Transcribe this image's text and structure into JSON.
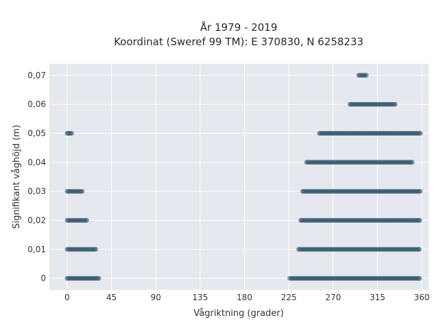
{
  "chart_data": {
    "type": "scatter",
    "title": "År 1979 - 2019",
    "subtitle": "Koordinat (Sweref 99 TM): E 370830, N 6258233",
    "xlabel": "Vågriktning (grader)",
    "ylabel": "Signifikant våghöjd (m)",
    "xlim": [
      -18,
      367
    ],
    "ylim": [
      -0.004,
      0.074
    ],
    "x_ticks": [
      0,
      45,
      90,
      135,
      180,
      225,
      270,
      315,
      360
    ],
    "x_tick_labels": [
      "0",
      "45",
      "90",
      "135",
      "180",
      "225",
      "270",
      "315",
      "360"
    ],
    "y_ticks": [
      0,
      0.01,
      0.02,
      0.03,
      0.04,
      0.05,
      0.06,
      0.07
    ],
    "y_tick_labels": [
      "0",
      "0,01",
      "0,02",
      "0,03",
      "0,04",
      "0,05",
      "0,06",
      "0,07"
    ],
    "grid": true,
    "marker_color": "#2e5068",
    "background_color": "#e5e8ef",
    "series": [
      {
        "ranges": [
          {
            "y": 0,
            "x_from": 0,
            "x_to": 33
          },
          {
            "y": 0,
            "x_from": 226,
            "x_to": 359
          },
          {
            "y": 0.01,
            "x_from": 0,
            "x_to": 30
          },
          {
            "y": 0.01,
            "x_from": 235,
            "x_to": 359
          },
          {
            "y": 0.02,
            "x_from": 0,
            "x_to": 21
          },
          {
            "y": 0.02,
            "x_from": 237,
            "x_to": 359
          },
          {
            "y": 0.03,
            "x_from": 0,
            "x_to": 16
          },
          {
            "y": 0.03,
            "x_from": 239,
            "x_to": 359
          },
          {
            "y": 0.04,
            "x_from": 243,
            "x_to": 351
          },
          {
            "y": 0.05,
            "x_from": 0,
            "x_to": 6
          },
          {
            "y": 0.05,
            "x_from": 256,
            "x_to": 359
          },
          {
            "y": 0.06,
            "x_from": 287,
            "x_to": 334
          },
          {
            "y": 0.07,
            "x_from": 296,
            "x_to": 304
          }
        ]
      }
    ]
  }
}
